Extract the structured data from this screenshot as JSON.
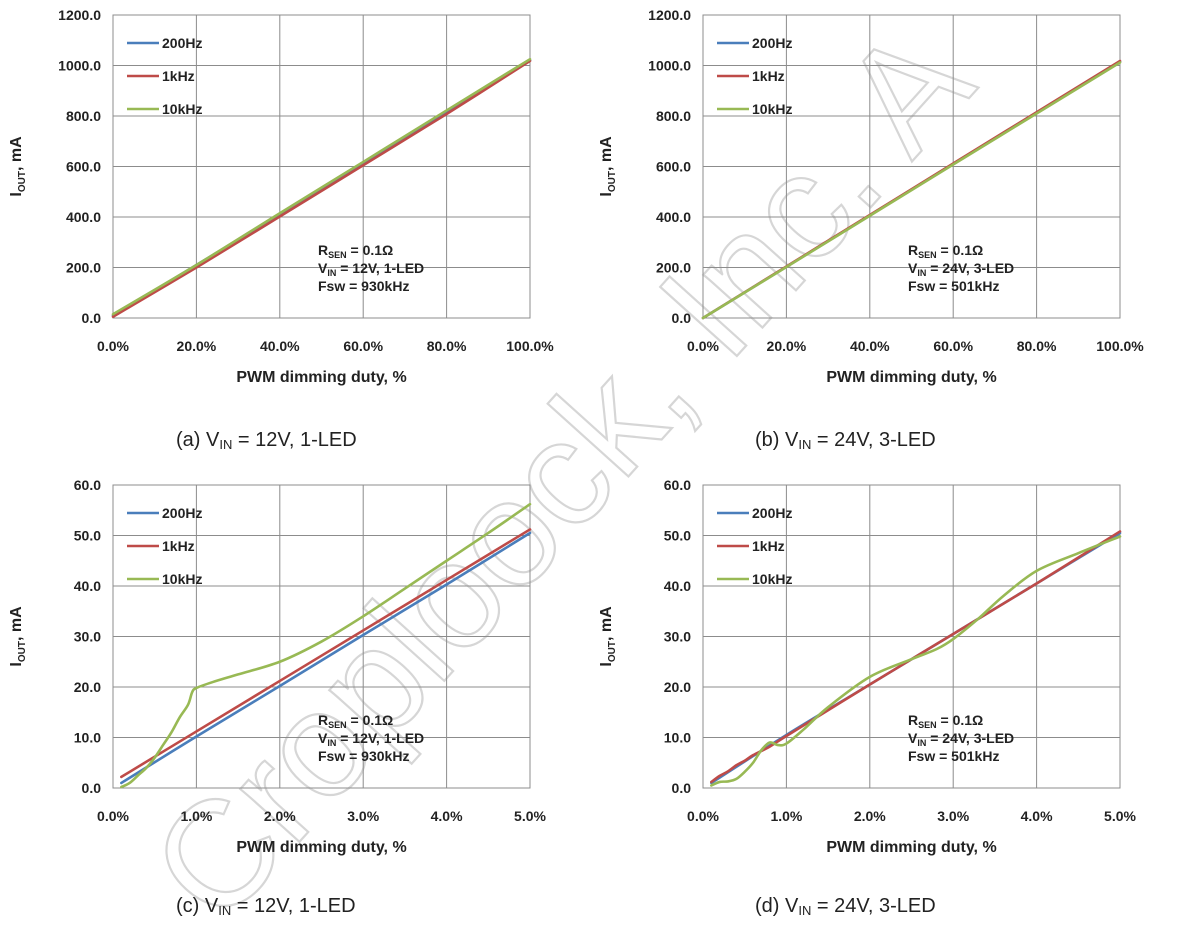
{
  "chart_data": [
    {
      "type": "line",
      "id": "a",
      "xlabel": "PWM dimming duty, %",
      "ylabel_main": "I",
      "ylabel_sub": "OUT",
      "ylabel_tail": ", mA",
      "xlim": [
        0,
        100
      ],
      "ylim": [
        0,
        1200
      ],
      "xticks": [
        0,
        20,
        40,
        60,
        80,
        100
      ],
      "xtick_labels": [
        "0.0%",
        "20.0%",
        "40.0%",
        "60.0%",
        "80.0%",
        "100.0%"
      ],
      "yticks": [
        0,
        200,
        400,
        600,
        800,
        1000,
        1200
      ],
      "ytick_labels": [
        "0.0",
        "200.0",
        "400.0",
        "600.0",
        "800.0",
        "1000.0",
        "1200.0"
      ],
      "grid": true,
      "legend_position": "top-left",
      "series": [
        {
          "name": "200Hz",
          "color": "#4A7EBB",
          "x": [
            0,
            20,
            40,
            60,
            80,
            100
          ],
          "y": [
            10,
            210,
            410,
            612,
            815,
            1020
          ]
        },
        {
          "name": "1kHz",
          "color": "#BE4B48",
          "x": [
            0,
            20,
            40,
            60,
            80,
            100
          ],
          "y": [
            5,
            200,
            402,
            605,
            808,
            1018
          ]
        },
        {
          "name": "10kHz",
          "color": "#98B954",
          "x": [
            0,
            20,
            40,
            60,
            80,
            100
          ],
          "y": [
            15,
            210,
            415,
            618,
            822,
            1025
          ]
        }
      ],
      "annotation": {
        "rsen_main": "R",
        "rsen_sub": "SEN",
        "rsen_tail": " = 0.1Ω",
        "vin_main": "V",
        "vin_sub": "IN",
        "vin_tail": " = 12V, 1-LED",
        "fsw": "Fsw = 930kHz"
      },
      "caption_pre": "(a) V",
      "caption_sub": "IN",
      "caption_post": " = 12V, 1-LED"
    },
    {
      "type": "line",
      "id": "b",
      "xlabel": "PWM dimming duty, %",
      "ylabel_main": "I",
      "ylabel_sub": "OUT",
      "ylabel_tail": ", mA",
      "xlim": [
        0,
        100
      ],
      "ylim": [
        0,
        1200
      ],
      "xticks": [
        0,
        20,
        40,
        60,
        80,
        100
      ],
      "xtick_labels": [
        "0.0%",
        "20.0%",
        "40.0%",
        "60.0%",
        "80.0%",
        "100.0%"
      ],
      "yticks": [
        0,
        200,
        400,
        600,
        800,
        1000,
        1200
      ],
      "ytick_labels": [
        "0.0",
        "200.0",
        "400.0",
        "600.0",
        "800.0",
        "1000.0",
        "1200.0"
      ],
      "grid": true,
      "legend_position": "top-left",
      "series": [
        {
          "name": "200Hz",
          "color": "#4A7EBB",
          "x": [
            0,
            20,
            40,
            60,
            80,
            100
          ],
          "y": [
            0,
            203,
            406,
            610,
            812,
            1015
          ]
        },
        {
          "name": "1kHz",
          "color": "#BE4B48",
          "x": [
            0,
            20,
            40,
            60,
            80,
            100
          ],
          "y": [
            0,
            204,
            408,
            612,
            815,
            1018
          ]
        },
        {
          "name": "10kHz",
          "color": "#98B954",
          "x": [
            0,
            20,
            40,
            60,
            80,
            100
          ],
          "y": [
            0,
            202,
            405,
            608,
            810,
            1012
          ]
        }
      ],
      "annotation": {
        "rsen_main": "R",
        "rsen_sub": "SEN",
        "rsen_tail": " = 0.1Ω",
        "vin_main": "V",
        "vin_sub": "IN",
        "vin_tail": " = 24V, 3-LED",
        "fsw": "Fsw = 501kHz"
      },
      "caption_pre": "(b) V",
      "caption_sub": "IN",
      "caption_post": " = 24V, 3-LED"
    },
    {
      "type": "line",
      "id": "c",
      "xlabel": "PWM dimming duty, %",
      "ylabel_main": "I",
      "ylabel_sub": "OUT",
      "ylabel_tail": ", mA",
      "xlim": [
        0,
        5
      ],
      "ylim": [
        0,
        60
      ],
      "xticks": [
        0,
        1,
        2,
        3,
        4,
        5
      ],
      "xtick_labels": [
        "0.0%",
        "1.0%",
        "2.0%",
        "3.0%",
        "4.0%",
        "5.0%"
      ],
      "yticks": [
        0,
        10,
        20,
        30,
        40,
        50,
        60
      ],
      "ytick_labels": [
        "0.0",
        "10.0",
        "20.0",
        "30.0",
        "40.0",
        "50.0",
        "60.0"
      ],
      "grid": true,
      "legend_position": "top-left",
      "series": [
        {
          "name": "200Hz",
          "color": "#4A7EBB",
          "x": [
            0.1,
            1,
            2,
            3,
            4,
            5
          ],
          "y": [
            1.0,
            10.2,
            20.2,
            30.3,
            40.3,
            50.5
          ]
        },
        {
          "name": "1kHz",
          "color": "#BE4B48",
          "x": [
            0.1,
            1,
            2,
            3,
            4,
            5
          ],
          "y": [
            2.2,
            11.2,
            21.2,
            31.2,
            41.2,
            51.2
          ]
        },
        {
          "name": "10kHz",
          "color": "#98B954",
          "x": [
            0.1,
            0.2,
            0.3,
            0.4,
            0.5,
            0.6,
            0.7,
            0.8,
            0.9,
            0.95,
            1.0,
            1.2,
            1.5,
            2.0,
            2.5,
            3.0,
            3.5,
            4.0,
            4.5,
            5.0
          ],
          "y": [
            0.2,
            1.0,
            2.5,
            4.0,
            6.0,
            8.5,
            11.0,
            14.0,
            16.5,
            19.0,
            19.8,
            21.0,
            22.5,
            25.0,
            29.0,
            34.0,
            39.5,
            45.0,
            50.5,
            56.2
          ]
        }
      ],
      "annotation": {
        "rsen_main": "R",
        "rsen_sub": "SEN",
        "rsen_tail": " = 0.1Ω",
        "vin_main": "V",
        "vin_sub": "IN",
        "vin_tail": " = 12V, 1-LED",
        "fsw": "Fsw = 930kHz"
      },
      "caption_pre": "(c) V",
      "caption_sub": "IN",
      "caption_post": " = 12V, 1-LED"
    },
    {
      "type": "line",
      "id": "d",
      "xlabel": "PWM dimming duty, %",
      "ylabel_main": "I",
      "ylabel_sub": "OUT",
      "ylabel_tail": ", mA",
      "xlim": [
        0,
        5
      ],
      "ylim": [
        0,
        60
      ],
      "xticks": [
        0,
        1,
        2,
        3,
        4,
        5
      ],
      "xtick_labels": [
        "0.0%",
        "1.0%",
        "2.0%",
        "3.0%",
        "4.0%",
        "5.0%"
      ],
      "yticks": [
        0,
        10,
        20,
        30,
        40,
        50,
        60
      ],
      "ytick_labels": [
        "0.0",
        "10.0",
        "20.0",
        "30.0",
        "40.0",
        "50.0",
        "60.0"
      ],
      "grid": true,
      "legend_position": "top-left",
      "series": [
        {
          "name": "200Hz",
          "color": "#4A7EBB",
          "x": [
            0.1,
            1,
            2,
            3,
            4,
            5
          ],
          "y": [
            1.0,
            10.5,
            20.5,
            30.5,
            40.5,
            50.5
          ]
        },
        {
          "name": "1kHz",
          "color": "#BE4B48",
          "x": [
            0.1,
            0.2,
            0.3,
            0.4,
            0.5,
            0.6,
            0.8,
            1.0,
            2.0,
            3.0,
            4.0,
            5.0
          ],
          "y": [
            1.2,
            2.4,
            3.3,
            4.5,
            5.4,
            6.5,
            8.2,
            10.3,
            20.5,
            30.5,
            40.5,
            50.8
          ]
        },
        {
          "name": "10kHz",
          "color": "#98B954",
          "x": [
            0.1,
            0.2,
            0.3,
            0.4,
            0.5,
            0.6,
            0.7,
            0.8,
            0.9,
            1.0,
            1.2,
            1.5,
            2.0,
            2.5,
            2.8,
            3.0,
            3.3,
            3.6,
            4.0,
            4.5,
            5.0
          ],
          "y": [
            0.5,
            1.2,
            1.3,
            1.8,
            3.2,
            5.0,
            7.5,
            9.0,
            8.5,
            8.8,
            11.5,
            16.0,
            22.0,
            25.5,
            27.5,
            29.5,
            33.5,
            38.0,
            43.0,
            46.5,
            49.8
          ]
        }
      ],
      "annotation": {
        "rsen_main": "R",
        "rsen_sub": "SEN",
        "rsen_tail": " = 0.1Ω",
        "vin_main": "V",
        "vin_sub": "IN",
        "vin_tail": " = 24V, 3-LED",
        "fsw": "Fsw = 501kHz"
      },
      "caption_pre": "(d) V",
      "caption_sub": "IN",
      "caption_post": " = 24V, 3-LED"
    }
  ],
  "watermark": {
    "text": "Croploock, Inc. A",
    "color": "#cccccc"
  }
}
